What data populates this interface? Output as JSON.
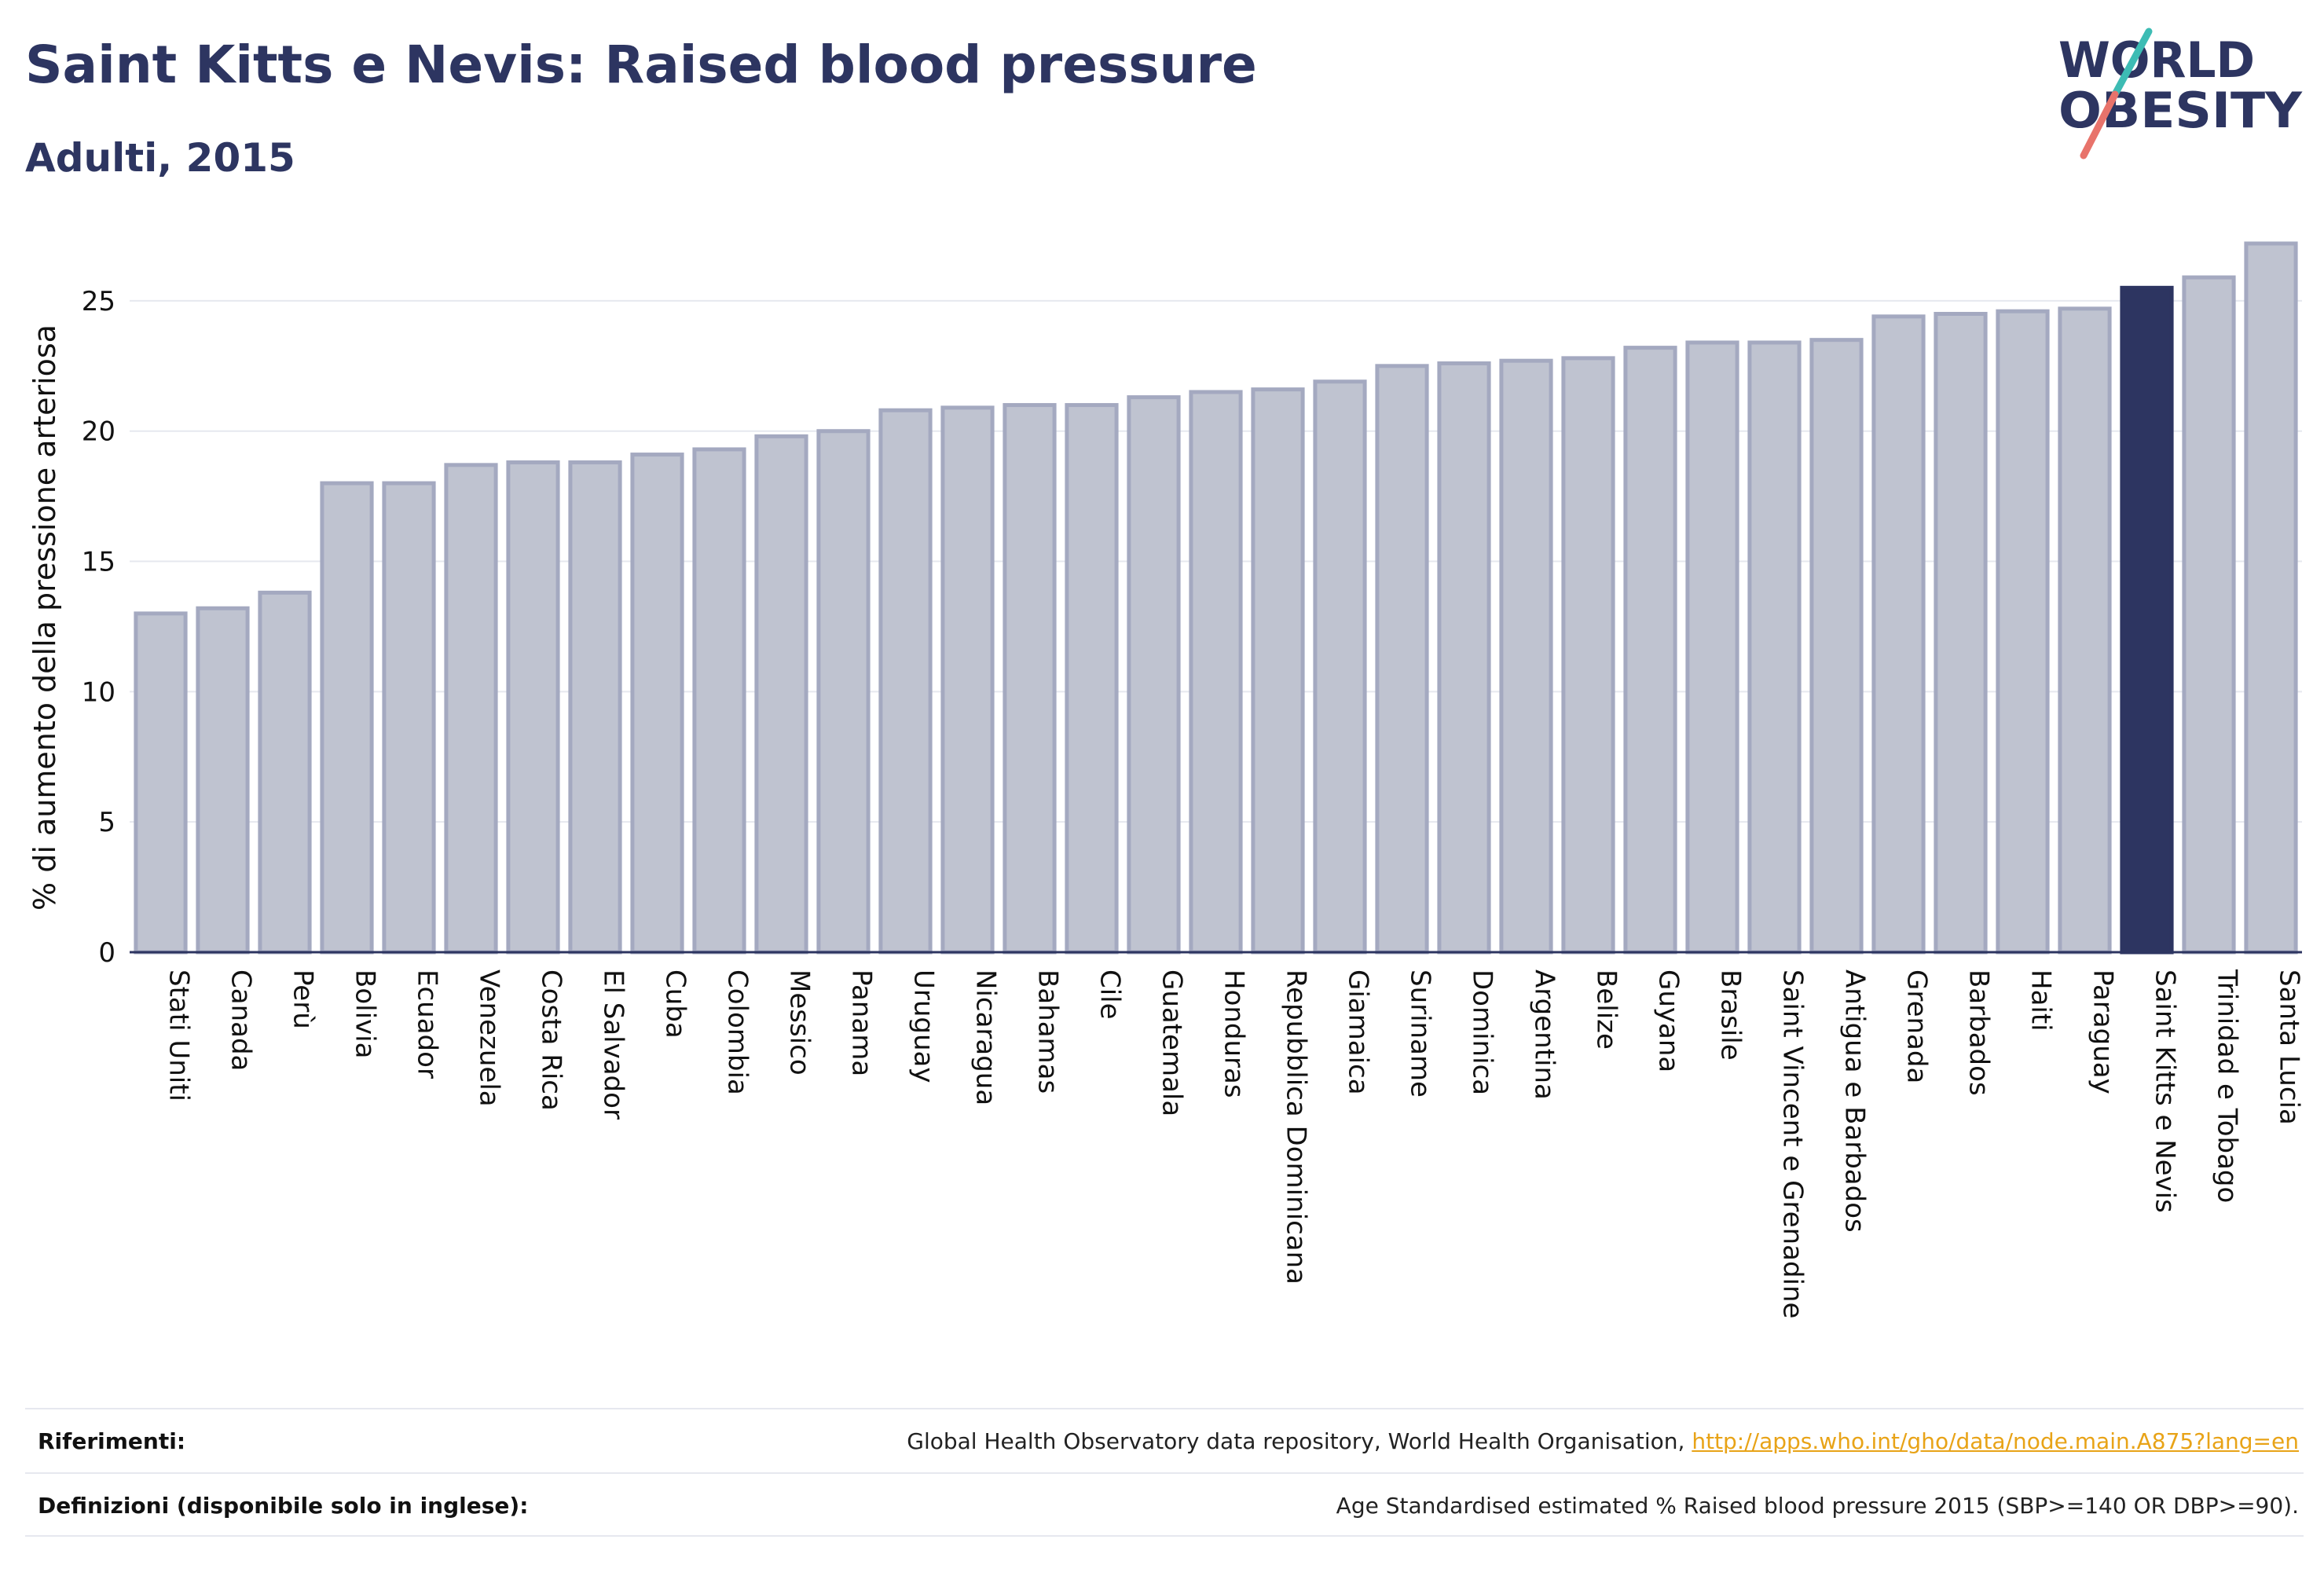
{
  "header": {
    "title": "Saint Kitts e Nevis: Raised blood pressure",
    "subtitle": "Adulti, 2015",
    "logo_line1": "WORLD",
    "logo_line2": "OBESITY"
  },
  "chart_data": {
    "type": "bar",
    "ylabel": "% di aumento della pressione arteriosa",
    "ylim": [
      0,
      27.5
    ],
    "yticks": [
      0,
      5,
      10,
      15,
      20,
      25
    ],
    "grid": true,
    "highlight": "Saint Kitts e Nevis",
    "colors": {
      "bar": "#bfc3d0",
      "bar_edge": "#a4a9c0",
      "highlight": "#2d3561",
      "axis": "#2d3561",
      "grid": "#e6e8ef"
    },
    "categories": [
      "Stati Uniti",
      "Canada",
      "Perù",
      "Bolivia",
      "Ecuador",
      "Venezuela",
      "Costa Rica",
      "El Salvador",
      "Cuba",
      "Colombia",
      "Messico",
      "Panama",
      "Uruguay",
      "Nicaragua",
      "Bahamas",
      "Cile",
      "Guatemala",
      "Honduras",
      "Repubblica Dominicana",
      "Giamaica",
      "Suriname",
      "Dominica",
      "Argentina",
      "Belize",
      "Guyana",
      "Brasile",
      "Saint Vincent e Grenadine",
      "Antigua e Barbados",
      "Grenada",
      "Barbados",
      "Haiti",
      "Paraguay",
      "Saint Kitts e Nevis",
      "Trinidad e Tobago",
      "Santa Lucia"
    ],
    "values": [
      13.0,
      13.2,
      13.8,
      18.0,
      18.0,
      18.7,
      18.8,
      18.8,
      19.1,
      19.3,
      19.8,
      20.0,
      20.8,
      20.9,
      21.0,
      21.0,
      21.3,
      21.5,
      21.6,
      21.9,
      22.5,
      22.6,
      22.7,
      22.8,
      23.2,
      23.4,
      23.4,
      23.5,
      24.4,
      24.5,
      24.6,
      24.7,
      25.5,
      25.9,
      27.2
    ]
  },
  "footer": {
    "references_label": "Riferimenti:",
    "references_text": "Global Health Observatory data repository, World Health Organisation, ",
    "references_link": "http://apps.who.int/gho/data/node.main.A875?lang=en",
    "definitions_label": "Definizioni (disponibile solo in inglese):",
    "definitions_text": "Age Standardised estimated % Raised blood pressure 2015 (SBP>=140 OR DBP>=90)."
  }
}
